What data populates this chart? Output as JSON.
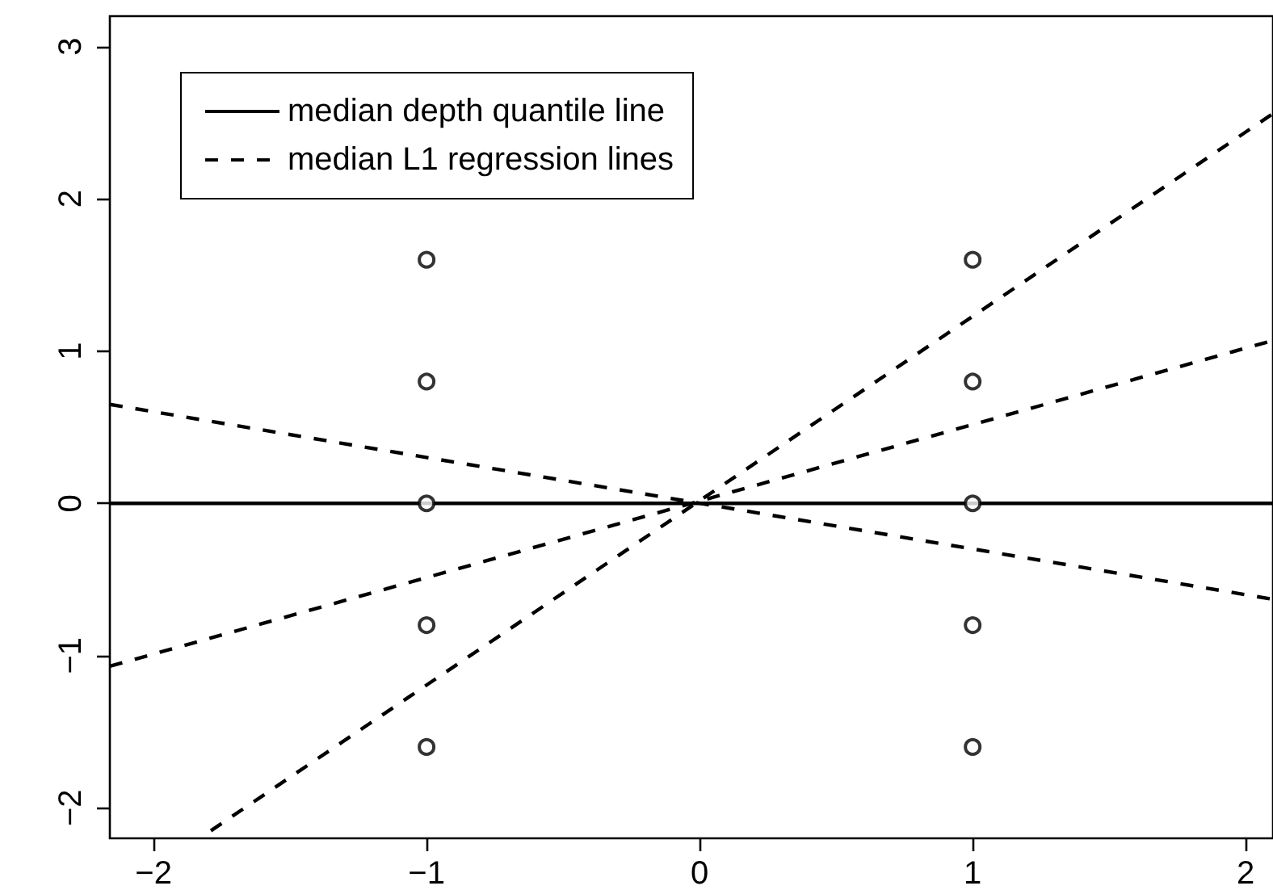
{
  "chart_data": {
    "type": "line",
    "xlim": [
      -2.16,
      2.1
    ],
    "ylim": [
      -2.2,
      3.2
    ],
    "xticks": [
      -2,
      -1,
      0,
      1,
      2
    ],
    "yticks": [
      -2,
      -1,
      0,
      1,
      2,
      3
    ],
    "grid": false,
    "legend": "top left",
    "series": [
      {
        "type": "scatter",
        "marker": "circle",
        "color": "#000000",
        "x": [
          -1,
          -1,
          -1,
          -1,
          -1,
          1,
          1,
          1,
          1,
          1
        ],
        "values": [
          1.6,
          0.8,
          0,
          -0.8,
          -1.6,
          1.6,
          0.8,
          0,
          -0.8,
          -1.6
        ]
      },
      {
        "name": "median depth quantile line",
        "line_style": "solid",
        "color": "#000000",
        "x": [
          -2.16,
          2.1
        ],
        "values": [
          0,
          0
        ]
      },
      {
        "name": "median L1 regression lines",
        "line_style": "dashed",
        "color": "#000000",
        "x": [
          -1.79,
          2.1
        ],
        "values": [
          -2.15,
          2.56
        ]
      },
      {
        "line_style": "dashed",
        "color": "#000000",
        "x": [
          -2.16,
          2.1
        ],
        "values": [
          -1.07,
          1.07
        ]
      },
      {
        "line_style": "dashed",
        "color": "#000000",
        "x": [
          -2.16,
          2.1
        ],
        "values": [
          0.65,
          -0.63
        ]
      }
    ]
  }
}
